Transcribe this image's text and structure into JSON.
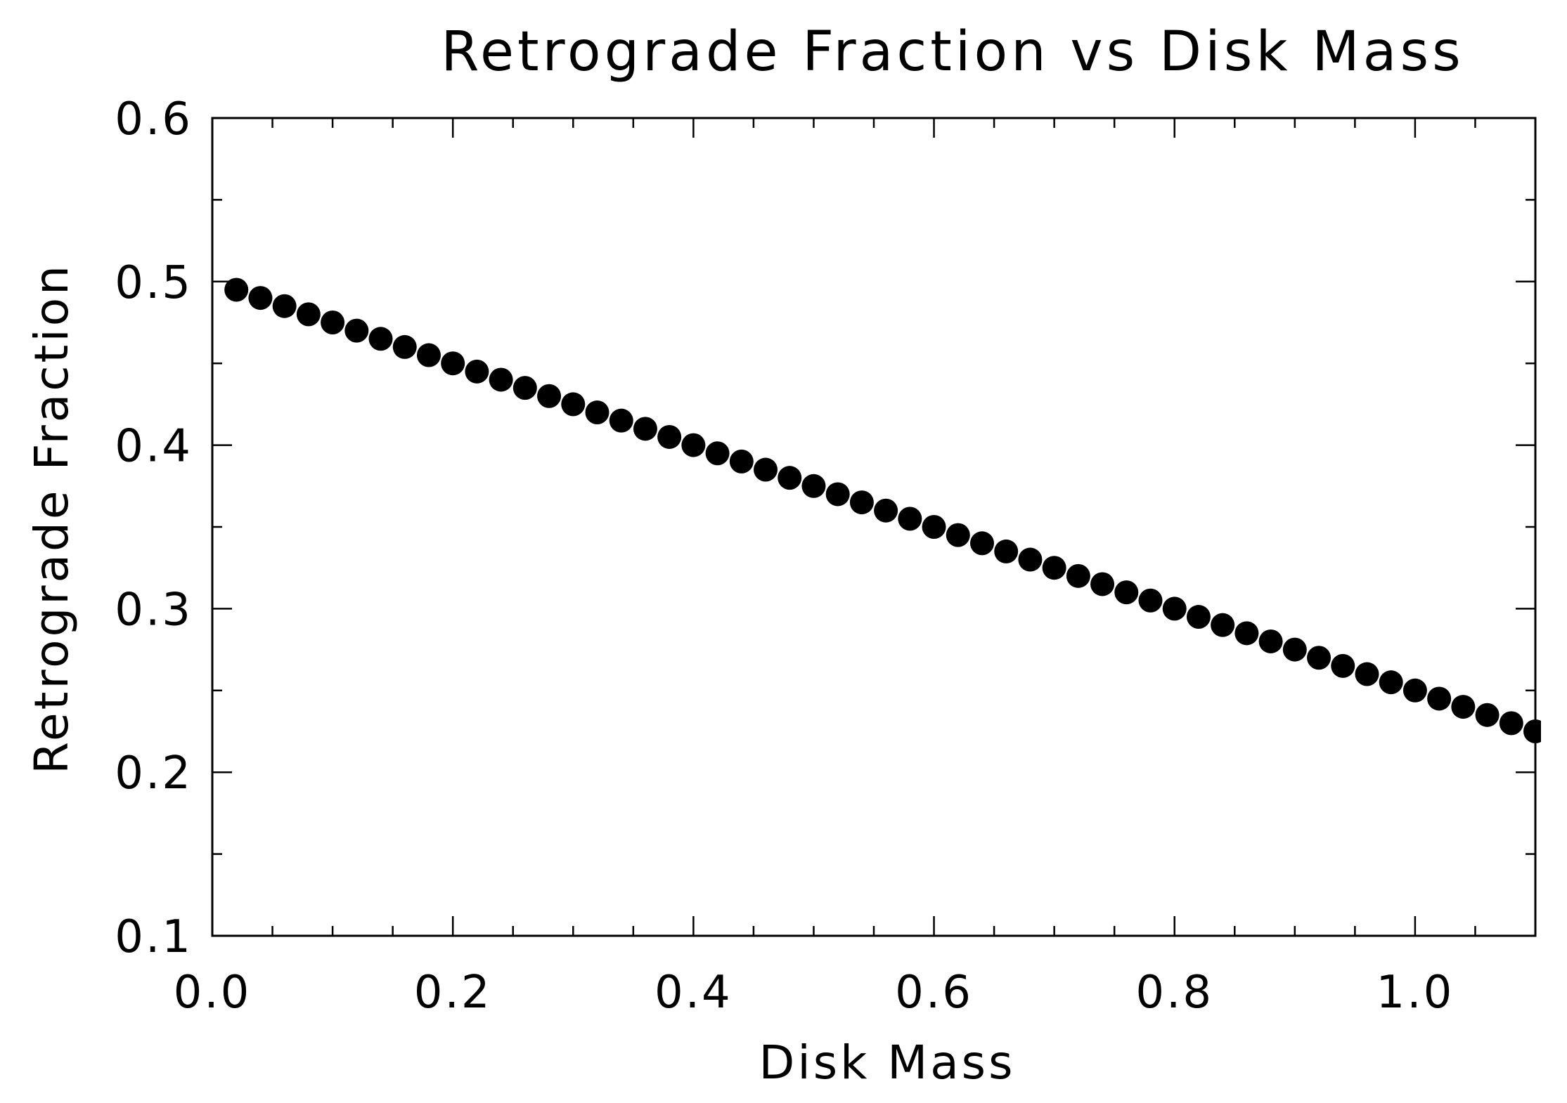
{
  "chart_data": {
    "type": "scatter",
    "title": "Retrograde Fraction vs Disk Mass",
    "xlabel": "Disk Mass",
    "ylabel": "Retrograde Fraction",
    "xlim": [
      0.0,
      1.1
    ],
    "ylim": [
      0.1,
      0.6
    ],
    "x_ticks": [
      "0.0",
      "0.2",
      "0.4",
      "0.6",
      "0.8",
      "1.0"
    ],
    "y_ticks": [
      "0.1",
      "0.2",
      "0.3",
      "0.4",
      "0.5",
      "0.6"
    ],
    "grid": false,
    "legend": "none",
    "marker_color": "#000000",
    "series": [
      {
        "x": [
          0.02,
          0.04,
          0.06,
          0.08,
          0.1,
          0.12,
          0.14,
          0.16,
          0.18,
          0.2,
          0.22,
          0.24,
          0.26,
          0.28,
          0.3,
          0.32,
          0.34,
          0.36,
          0.38,
          0.4,
          0.42,
          0.44,
          0.46,
          0.48,
          0.5,
          0.52,
          0.54,
          0.56,
          0.58,
          0.6,
          0.62,
          0.64,
          0.66,
          0.68,
          0.7,
          0.72,
          0.74,
          0.76,
          0.78,
          0.8,
          0.82,
          0.84,
          0.86,
          0.88,
          0.9,
          0.92,
          0.94,
          0.96,
          0.98,
          1.0,
          1.02,
          1.04,
          1.06,
          1.08,
          1.1
        ],
        "y": [
          0.495,
          0.49,
          0.485,
          0.48,
          0.475,
          0.47,
          0.465,
          0.46,
          0.455,
          0.45,
          0.445,
          0.44,
          0.435,
          0.43,
          0.425,
          0.42,
          0.415,
          0.41,
          0.405,
          0.4,
          0.395,
          0.39,
          0.385,
          0.38,
          0.375,
          0.37,
          0.365,
          0.36,
          0.355,
          0.35,
          0.345,
          0.34,
          0.335,
          0.33,
          0.325,
          0.32,
          0.315,
          0.31,
          0.305,
          0.3,
          0.295,
          0.29,
          0.285,
          0.28,
          0.275,
          0.27,
          0.265,
          0.26,
          0.255,
          0.25,
          0.245,
          0.24,
          0.235,
          0.23,
          0.225
        ]
      }
    ]
  }
}
